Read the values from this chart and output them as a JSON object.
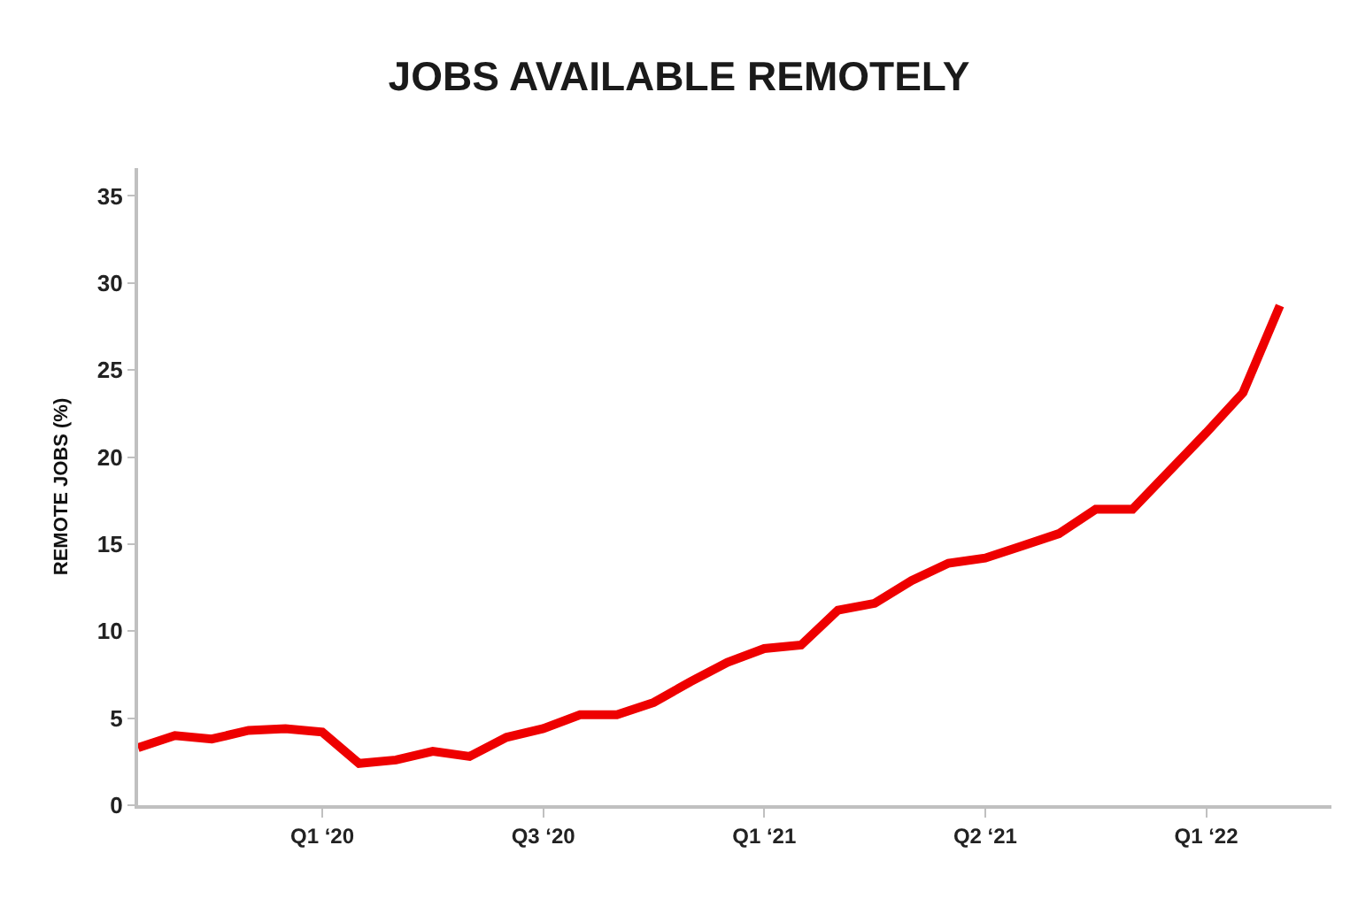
{
  "chart_data": {
    "type": "line",
    "title": "JOBS AVAILABLE REMOTELY",
    "ylabel": "REMOTE JOBS (%)",
    "categories": [
      null,
      null,
      null,
      null,
      null,
      "Q1 ‘20",
      null,
      null,
      null,
      null,
      null,
      "Q3 ‘20",
      null,
      null,
      null,
      null,
      null,
      "Q1 ‘21",
      null,
      null,
      null,
      null,
      null,
      "Q2 ‘21",
      null,
      null,
      null,
      null,
      null,
      "Q1 ‘22",
      null,
      null
    ],
    "series": [
      {
        "color": "#ee0000",
        "values": [
          3.3,
          4.0,
          3.8,
          4.3,
          4.4,
          4.2,
          2.4,
          2.6,
          3.1,
          2.8,
          3.9,
          4.4,
          5.2,
          5.2,
          5.9,
          7.1,
          8.2,
          9.0,
          9.2,
          11.2,
          11.6,
          12.9,
          13.9,
          14.2,
          14.9,
          15.6,
          17.0,
          17.0,
          19.2,
          21.4,
          23.7,
          28.7
        ]
      }
    ],
    "ylim": [
      0,
      36.6
    ],
    "yticks": [
      0,
      5,
      10,
      15,
      20,
      25,
      30,
      35
    ],
    "marker": "none",
    "line_style": "solid"
  }
}
